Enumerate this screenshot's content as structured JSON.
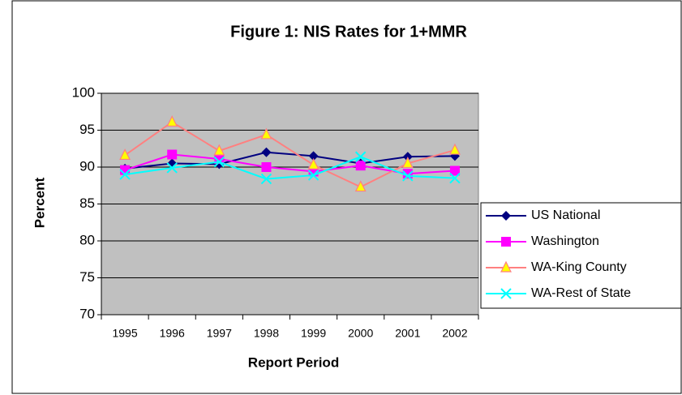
{
  "chart_data": {
    "type": "line",
    "title": "Figure 1: NIS Rates for 1+MMR",
    "x_label": "Report Period",
    "y_label": "Percent",
    "categories": [
      "1995",
      "1996",
      "1997",
      "1998",
      "1999",
      "2000",
      "2001",
      "2002"
    ],
    "series": [
      {
        "name": "US National",
        "color": "#000080",
        "marker": "diamond",
        "marker_fill": "#000080",
        "values": [
          89.8,
          90.5,
          90.4,
          92.0,
          91.5,
          90.5,
          91.4,
          91.5
        ]
      },
      {
        "name": "Washington",
        "color": "#ff00ff",
        "marker": "square",
        "marker_fill": "#ff00ff",
        "values": [
          89.6,
          91.7,
          91.1,
          90.0,
          89.4,
          90.2,
          89.1,
          89.5
        ]
      },
      {
        "name": "WA-King County",
        "color": "#ff8080",
        "marker": "triangle",
        "marker_fill": "#ffff00",
        "values": [
          91.6,
          96.1,
          92.2,
          94.4,
          90.3,
          87.3,
          90.5,
          92.3
        ]
      },
      {
        "name": "WA-Rest of State",
        "color": "#00ffff",
        "marker": "x",
        "marker_fill": "#00ffff",
        "values": [
          89.0,
          89.9,
          90.7,
          88.4,
          88.9,
          91.4,
          88.8,
          88.5
        ]
      }
    ],
    "ylim": [
      70,
      100
    ],
    "yticks": [
      70,
      75,
      80,
      85,
      90,
      95,
      100
    ],
    "grid": true,
    "plot_background": "#c0c0c0",
    "legend": "right"
  }
}
